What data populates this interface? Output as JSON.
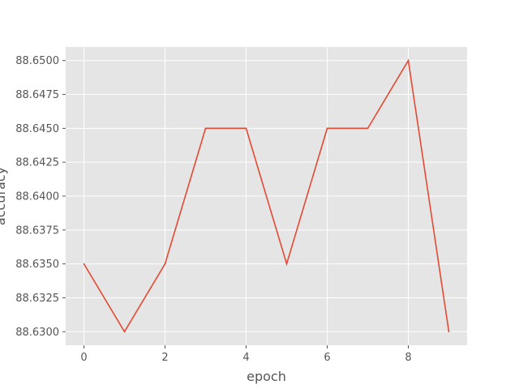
{
  "chart_data": {
    "type": "line",
    "title": "",
    "xlabel": "epoch",
    "ylabel": "accuracy",
    "x": [
      0,
      1,
      2,
      3,
      4,
      5,
      6,
      7,
      8,
      9
    ],
    "series": [
      {
        "values": [
          88.635,
          88.63,
          88.635,
          88.645,
          88.645,
          88.635,
          88.645,
          88.645,
          88.65,
          88.63
        ],
        "color": "#E24A33"
      }
    ],
    "xlim": [
      -0.45,
      9.45
    ],
    "ylim": [
      88.629,
      88.651
    ],
    "xticks": [
      0,
      2,
      4,
      6,
      8
    ],
    "xtick_labels": [
      "0",
      "2",
      "4",
      "6",
      "8"
    ],
    "yticks": [
      88.63,
      88.6325,
      88.635,
      88.6375,
      88.64,
      88.6425,
      88.645,
      88.6475,
      88.65
    ],
    "ytick_labels": [
      "88.6300",
      "88.6325",
      "88.6350",
      "88.6375",
      "88.6400",
      "88.6425",
      "88.6450",
      "88.6475",
      "88.6500"
    ],
    "grid": true,
    "style": "ggplot",
    "background_color": "#E5E5E5",
    "grid_color": "#FFFFFF"
  }
}
